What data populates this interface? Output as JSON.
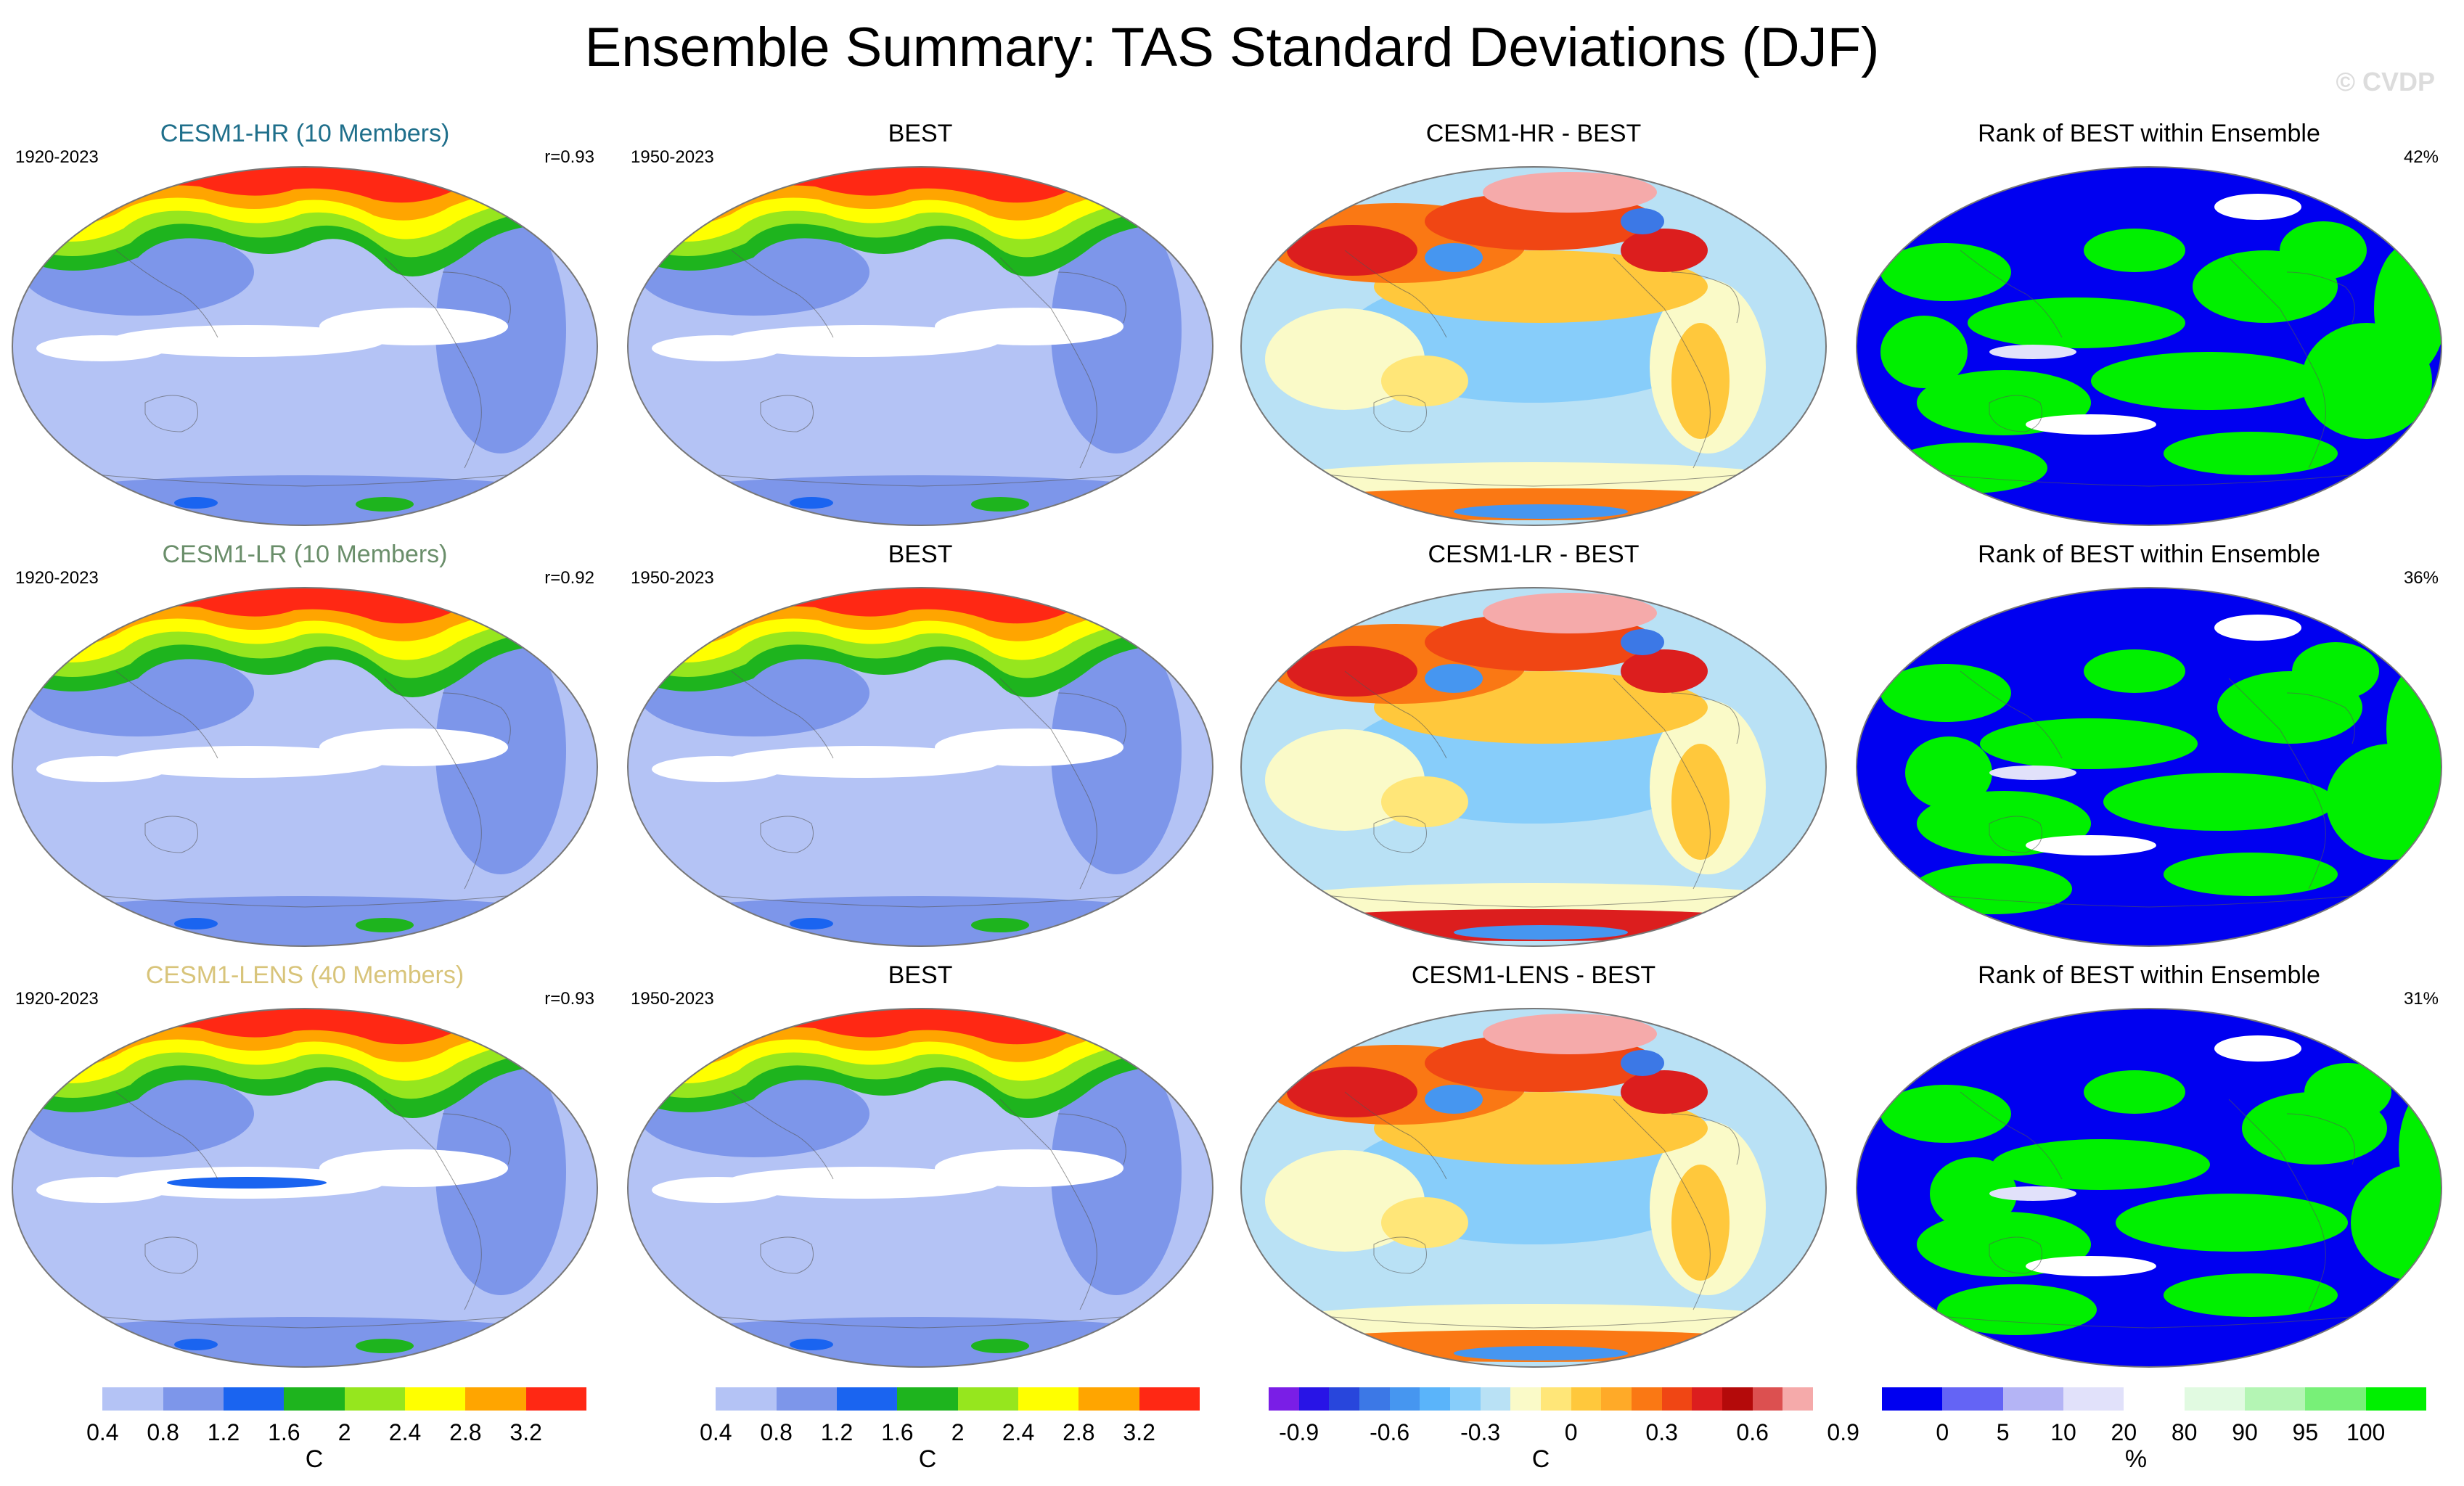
{
  "title": "Ensemble Summary: TAS Standard Deviations (DJF)",
  "watermark": "© CVDP",
  "rows": [
    {
      "model": {
        "title": "CESM1-HR (10 Members)",
        "title_color": "#1f6f8b",
        "years": "1920-2023",
        "r": "r=0.93"
      },
      "obs": {
        "title": "BEST",
        "years": "1950-2023"
      },
      "diff": {
        "title": "CESM1-HR - BEST"
      },
      "rank": {
        "title": "Rank of BEST within Ensemble",
        "pct": "42%"
      }
    },
    {
      "model": {
        "title": "CESM1-LR (10 Members)",
        "title_color": "#6a8e6a",
        "years": "1920-2023",
        "r": "r=0.92"
      },
      "obs": {
        "title": "BEST",
        "years": "1950-2023"
      },
      "diff": {
        "title": "CESM1-LR - BEST"
      },
      "rank": {
        "title": "Rank of BEST within Ensemble",
        "pct": "36%"
      }
    },
    {
      "model": {
        "title": "CESM1-LENS (40 Members)",
        "title_color": "#d8c47a",
        "years": "1920-2023",
        "r": "r=0.93"
      },
      "obs": {
        "title": "BEST",
        "years": "1950-2023"
      },
      "diff": {
        "title": "CESM1-LENS - BEST"
      },
      "rank": {
        "title": "Rank of BEST within Ensemble",
        "pct": "31%"
      }
    }
  ],
  "colorbars": [
    {
      "unit": "C",
      "colors": [
        "#ffffff",
        "#b4c3f5",
        "#7d96ea",
        "#1a64f0",
        "#1eb41e",
        "#96e61e",
        "#ffff00",
        "#ffa500",
        "#ff2814"
      ],
      "ticks": [
        "0.4",
        "0.8",
        "1.2",
        "1.6",
        "2",
        "2.4",
        "2.8",
        "3.2"
      ]
    },
    {
      "unit": "C",
      "colors": [
        "#ffffff",
        "#b4c3f5",
        "#7d96ea",
        "#1a64f0",
        "#1eb41e",
        "#96e61e",
        "#ffff00",
        "#ffa500",
        "#ff2814"
      ],
      "ticks": [
        "0.4",
        "0.8",
        "1.2",
        "1.6",
        "2",
        "2.4",
        "2.8",
        "3.2"
      ]
    },
    {
      "unit": "C",
      "colors": [
        "#7a1ee6",
        "#2814e6",
        "#2846dc",
        "#3c78e6",
        "#4696f0",
        "#5ab4fa",
        "#87cdfa",
        "#b9e1f5",
        "#fafac8",
        "#ffe678",
        "#ffc83c",
        "#ffaa28",
        "#fa7814",
        "#f04614",
        "#dc1e1e",
        "#b40a0a",
        "#dc5050",
        "#f5aaaa"
      ],
      "ticks": [
        "-0.9",
        "-0.6",
        "-0.3",
        "0",
        "0.3",
        "0.6",
        "0.9"
      ]
    },
    {
      "unit": "%",
      "colors": [
        "#0000f0",
        "#6464f5",
        "#b4b4f5",
        "#e1e1fa",
        "#ffffff",
        "#e1fae1",
        "#b4f5b4",
        "#78f078",
        "#00f000"
      ],
      "ticks": [
        "0",
        "5",
        "10",
        "20",
        "80",
        "90",
        "95",
        "100"
      ]
    }
  ]
}
